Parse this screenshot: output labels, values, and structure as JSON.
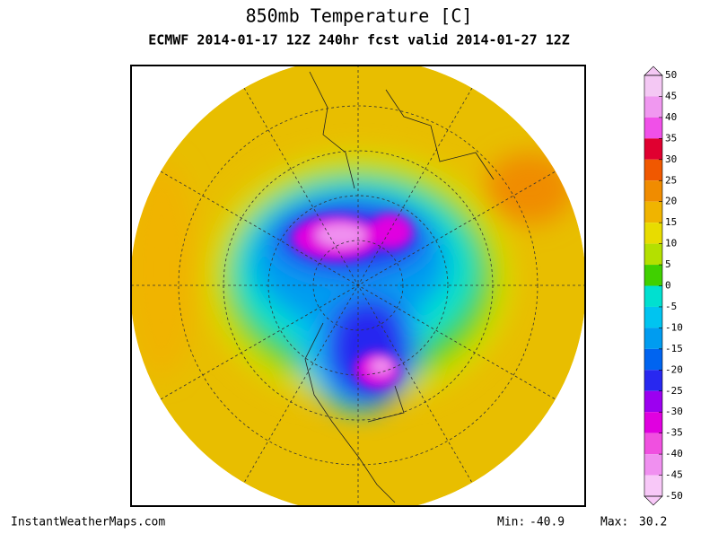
{
  "title": "850mb Temperature [C]",
  "subtitle": "ECMWF 2014-01-17 12Z 240hr fcst valid 2014-01-27 12Z",
  "colorbar": {
    "ticks": [
      50,
      45,
      40,
      35,
      30,
      25,
      20,
      15,
      10,
      5,
      0,
      -5,
      -10,
      -15,
      -20,
      -25,
      -30,
      -35,
      -40,
      -45,
      -50
    ],
    "colors": [
      "#f4c8f4",
      "#f098f0",
      "#f050e8",
      "#e00030",
      "#f05800",
      "#f08c00",
      "#f0b400",
      "#e8dc00",
      "#b4e000",
      "#40d000",
      "#00e0d0",
      "#00c4f0",
      "#009cf0",
      "#0064f0",
      "#2828f0",
      "#9c00f0",
      "#e000e0",
      "#f050e0",
      "#f090f0",
      "#f8c8f8"
    ]
  },
  "footer": {
    "source": "InstantWeatherMaps.com",
    "min_label": "Min:",
    "min": -40.9,
    "max_label": "Max:",
    "max": 30.2
  }
}
